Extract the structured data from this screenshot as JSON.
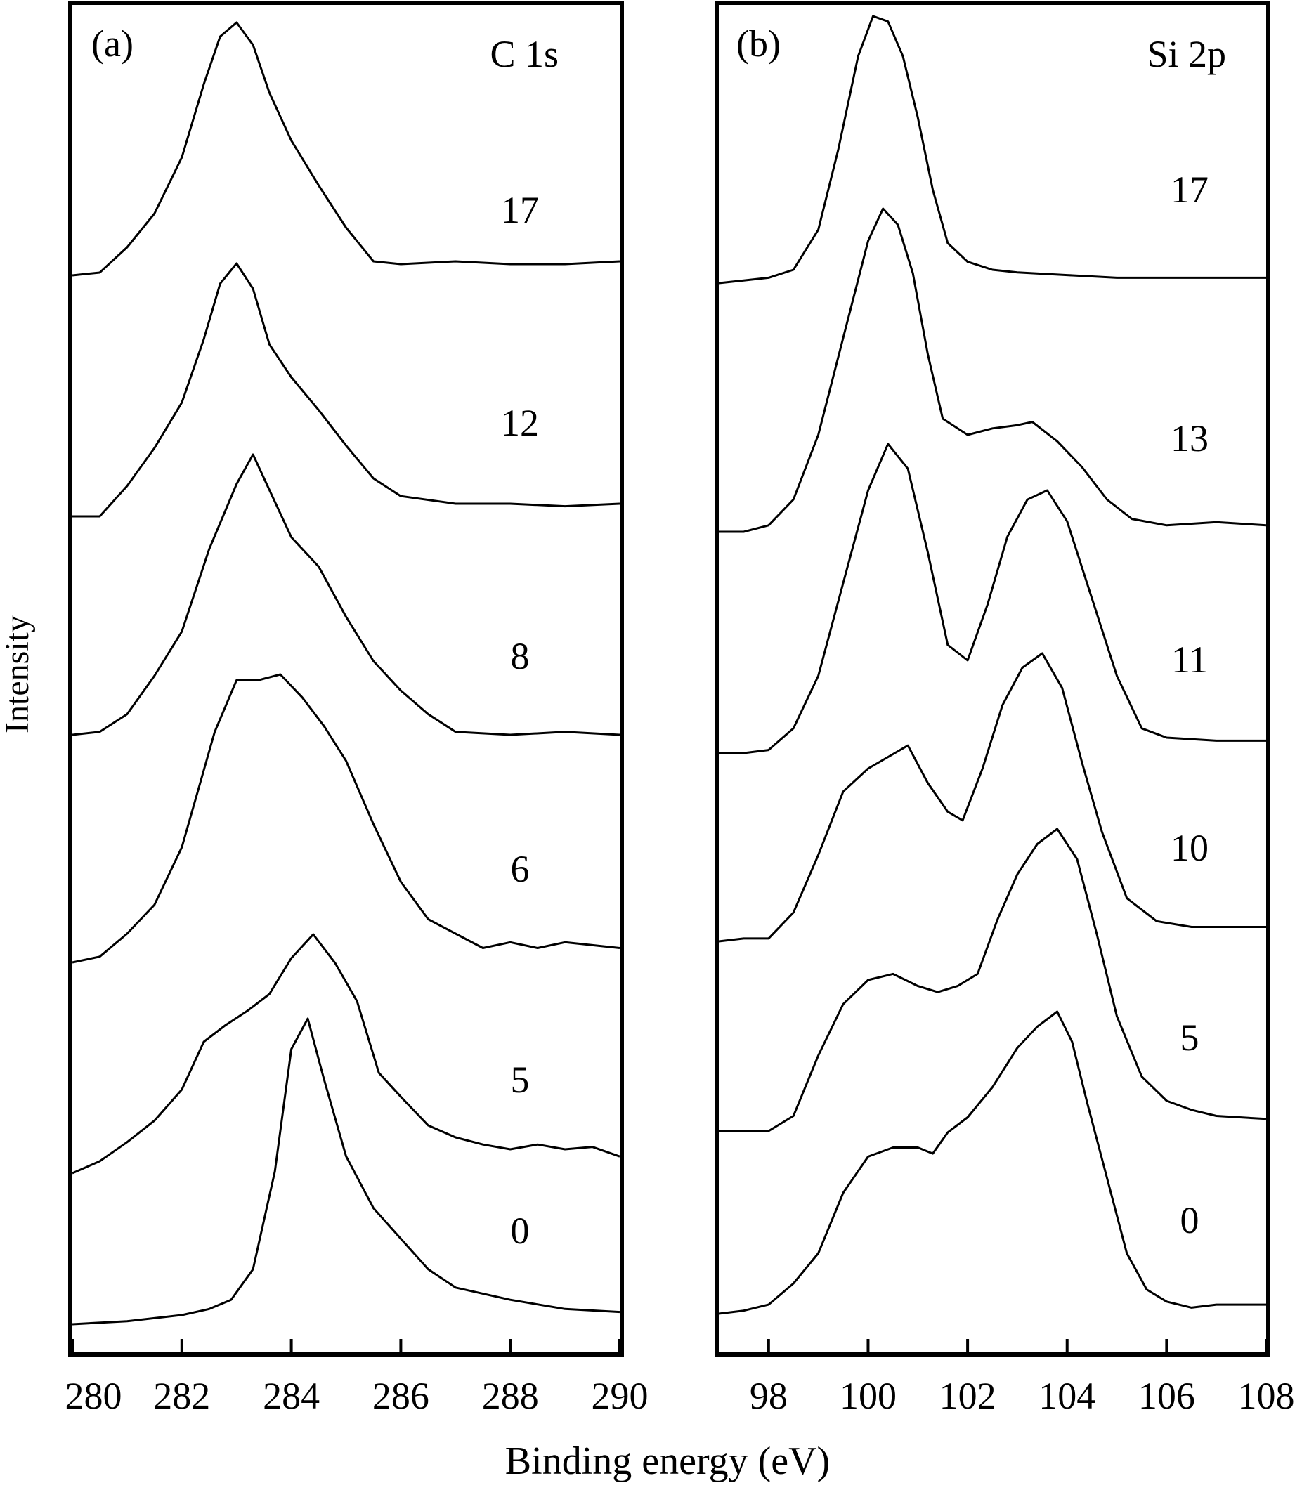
{
  "figure": {
    "ylabel": "Intensity",
    "xlabel": "Binding energy (eV)"
  },
  "chart_data": [
    {
      "type": "line",
      "panel_label": "(a)",
      "element_label": "C 1s",
      "xlim": [
        280,
        290
      ],
      "xticks": [
        280,
        282,
        284,
        286,
        288,
        290
      ],
      "ylabel": "Intensity",
      "xlabel": "Binding energy (eV)",
      "grid": false,
      "series": [
        {
          "name": "17",
          "x": [
            280,
            280.5,
            281,
            281.5,
            282,
            282.4,
            282.7,
            283,
            283.3,
            283.6,
            284,
            284.5,
            285,
            285.5,
            286,
            287,
            288,
            289,
            290
          ],
          "y": [
            0.1,
            0.11,
            0.2,
            0.32,
            0.52,
            0.78,
            0.95,
            1.0,
            0.92,
            0.75,
            0.58,
            0.42,
            0.27,
            0.15,
            0.14,
            0.15,
            0.14,
            0.14,
            0.15
          ]
        },
        {
          "name": "12",
          "x": [
            280,
            280.5,
            281,
            281.5,
            282,
            282.4,
            282.7,
            283,
            283.3,
            283.6,
            284,
            284.5,
            285,
            285.5,
            286,
            287,
            288,
            289,
            290
          ],
          "y": [
            0.0,
            0.0,
            0.12,
            0.27,
            0.45,
            0.7,
            0.92,
            1.0,
            0.9,
            0.68,
            0.55,
            0.42,
            0.28,
            0.15,
            0.08,
            0.05,
            0.05,
            0.04,
            0.05
          ]
        },
        {
          "name": "8",
          "x": [
            280,
            280.5,
            281,
            281.5,
            282,
            282.5,
            283,
            283.3,
            283.6,
            284,
            284.5,
            285,
            285.5,
            286,
            286.5,
            287,
            288,
            289,
            290
          ],
          "y": [
            0.05,
            0.06,
            0.12,
            0.25,
            0.4,
            0.68,
            0.9,
            1.0,
            0.88,
            0.72,
            0.62,
            0.45,
            0.3,
            0.2,
            0.12,
            0.06,
            0.05,
            0.06,
            0.05
          ]
        },
        {
          "name": "6",
          "x": [
            280,
            280.5,
            281,
            281.5,
            282,
            282.3,
            282.6,
            283,
            283.4,
            283.8,
            284.2,
            284.6,
            285,
            285.5,
            286,
            286.5,
            287,
            287.5,
            288,
            288.5,
            289,
            289.5,
            290
          ],
          "y": [
            0.0,
            0.02,
            0.1,
            0.2,
            0.4,
            0.6,
            0.8,
            0.98,
            0.98,
            1.0,
            0.92,
            0.82,
            0.7,
            0.48,
            0.28,
            0.15,
            0.1,
            0.05,
            0.07,
            0.05,
            0.07,
            0.06,
            0.05
          ]
        },
        {
          "name": "5",
          "x": [
            280,
            280.5,
            281,
            281.5,
            282,
            282.4,
            282.8,
            283.2,
            283.6,
            284,
            284.4,
            284.8,
            285.2,
            285.6,
            286,
            286.5,
            287,
            287.5,
            288,
            288.5,
            289,
            289.5,
            290
          ],
          "y": [
            0.0,
            0.05,
            0.13,
            0.22,
            0.35,
            0.55,
            0.62,
            0.68,
            0.75,
            0.9,
            1.0,
            0.88,
            0.72,
            0.42,
            0.32,
            0.2,
            0.15,
            0.12,
            0.1,
            0.12,
            0.1,
            0.11,
            0.07
          ]
        },
        {
          "name": "0",
          "x": [
            280,
            281,
            282,
            282.5,
            282.9,
            283.3,
            283.7,
            284,
            284.3,
            284.6,
            285,
            285.5,
            286,
            286.5,
            287,
            288,
            289,
            290
          ],
          "y": [
            0.0,
            0.01,
            0.03,
            0.05,
            0.08,
            0.18,
            0.5,
            0.9,
            1.0,
            0.8,
            0.55,
            0.38,
            0.28,
            0.18,
            0.12,
            0.08,
            0.05,
            0.04
          ]
        }
      ]
    },
    {
      "type": "line",
      "panel_label": "(b)",
      "element_label": "Si 2p",
      "xlim": [
        97,
        108
      ],
      "xticks": [
        98,
        100,
        102,
        104,
        106,
        108
      ],
      "ylabel": "Intensity",
      "xlabel": "Binding energy (eV)",
      "grid": false,
      "series": [
        {
          "name": "17",
          "x": [
            97,
            97.5,
            98,
            98.5,
            99,
            99.4,
            99.8,
            100.1,
            100.4,
            100.7,
            101,
            101.3,
            101.6,
            102,
            102.5,
            103,
            104,
            105,
            106,
            107,
            108
          ],
          "y": [
            0.0,
            0.01,
            0.02,
            0.05,
            0.2,
            0.5,
            0.85,
            1.0,
            0.98,
            0.85,
            0.62,
            0.35,
            0.15,
            0.08,
            0.05,
            0.04,
            0.03,
            0.02,
            0.02,
            0.02,
            0.02
          ]
        },
        {
          "name": "13",
          "x": [
            97,
            97.5,
            98,
            98.5,
            99,
            99.5,
            100,
            100.3,
            100.6,
            100.9,
            101.2,
            101.5,
            102,
            102.5,
            103,
            103.3,
            103.8,
            104.3,
            104.8,
            105.3,
            106,
            107,
            108
          ],
          "y": [
            0.0,
            0.0,
            0.02,
            0.1,
            0.3,
            0.6,
            0.9,
            1.0,
            0.95,
            0.8,
            0.55,
            0.35,
            0.3,
            0.32,
            0.33,
            0.34,
            0.28,
            0.2,
            0.1,
            0.04,
            0.02,
            0.03,
            0.02
          ]
        },
        {
          "name": "11",
          "x": [
            97,
            97.5,
            98,
            98.5,
            99,
            99.5,
            100,
            100.4,
            100.8,
            101.2,
            101.6,
            102,
            102.4,
            102.8,
            103.2,
            103.6,
            104,
            104.5,
            105,
            105.5,
            106,
            107,
            108
          ],
          "y": [
            0.0,
            0.0,
            0.01,
            0.08,
            0.25,
            0.55,
            0.85,
            1.0,
            0.92,
            0.65,
            0.35,
            0.3,
            0.48,
            0.7,
            0.82,
            0.85,
            0.75,
            0.5,
            0.25,
            0.08,
            0.05,
            0.04,
            0.04
          ]
        },
        {
          "name": "10",
          "x": [
            97,
            97.5,
            98,
            98.5,
            99,
            99.5,
            100,
            100.5,
            100.8,
            101.2,
            101.6,
            101.9,
            102.3,
            102.7,
            103.1,
            103.5,
            103.9,
            104.3,
            104.7,
            105.2,
            105.8,
            106.5,
            107,
            108
          ],
          "y": [
            0.0,
            0.01,
            0.01,
            0.1,
            0.3,
            0.52,
            0.6,
            0.65,
            0.68,
            0.55,
            0.45,
            0.42,
            0.6,
            0.82,
            0.95,
            1.0,
            0.88,
            0.62,
            0.38,
            0.15,
            0.07,
            0.05,
            0.05,
            0.05
          ]
        },
        {
          "name": "5",
          "x": [
            97,
            97.5,
            98,
            98.5,
            99,
            99.5,
            100,
            100.5,
            101,
            101.4,
            101.8,
            102.2,
            102.6,
            103,
            103.4,
            103.8,
            104.2,
            104.6,
            105,
            105.5,
            106,
            106.5,
            107,
            108
          ],
          "y": [
            0.0,
            0.0,
            0.0,
            0.05,
            0.25,
            0.42,
            0.5,
            0.52,
            0.48,
            0.46,
            0.48,
            0.52,
            0.7,
            0.85,
            0.95,
            1.0,
            0.9,
            0.65,
            0.38,
            0.18,
            0.1,
            0.07,
            0.05,
            0.04
          ]
        },
        {
          "name": "0",
          "x": [
            97,
            97.5,
            98,
            98.5,
            99,
            99.5,
            100,
            100.5,
            101,
            101.3,
            101.6,
            102,
            102.5,
            103,
            103.4,
            103.8,
            104.1,
            104.4,
            104.8,
            105.2,
            105.6,
            106,
            106.5,
            107,
            108
          ],
          "y": [
            0.0,
            0.01,
            0.03,
            0.1,
            0.2,
            0.4,
            0.52,
            0.55,
            0.55,
            0.53,
            0.6,
            0.65,
            0.75,
            0.88,
            0.95,
            1.0,
            0.9,
            0.7,
            0.45,
            0.2,
            0.08,
            0.04,
            0.02,
            0.03,
            0.03
          ]
        }
      ]
    }
  ]
}
